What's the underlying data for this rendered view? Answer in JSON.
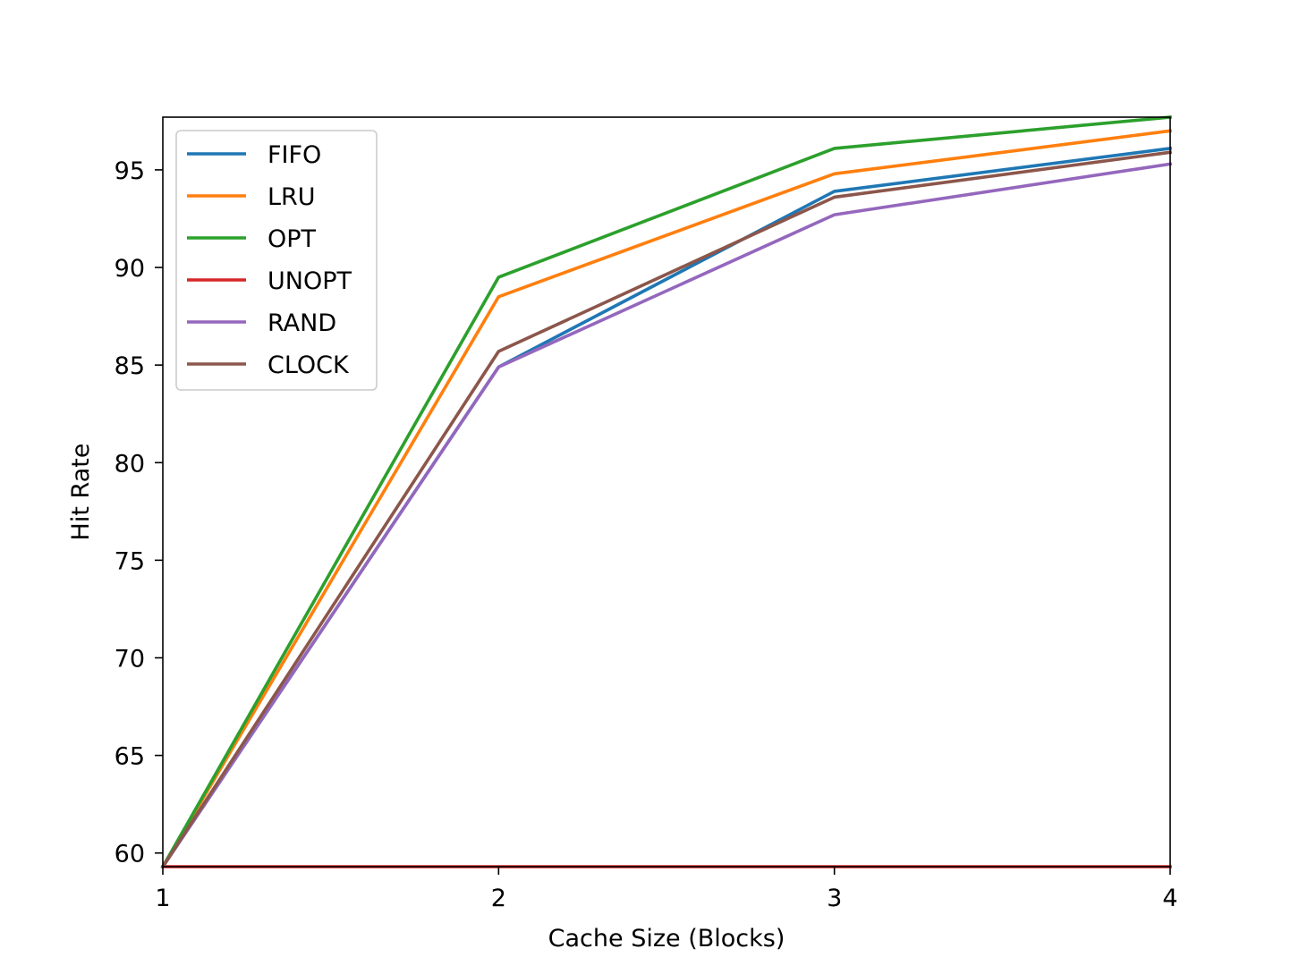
{
  "chart_data": {
    "type": "line",
    "xlabel": "Cache Size (Blocks)",
    "ylabel": "Hit Rate",
    "x": [
      1,
      2,
      3,
      4
    ],
    "xlim": [
      1,
      4
    ],
    "ylim": [
      59.3,
      97.7
    ],
    "xticks": [
      "1",
      "2",
      "3",
      "4"
    ],
    "yticks": [
      "60",
      "65",
      "70",
      "75",
      "80",
      "85",
      "90",
      "95"
    ],
    "grid": false,
    "legend_position": "upper-left",
    "series": [
      {
        "name": "FIFO",
        "color": "#1f77b4",
        "values": [
          59.3,
          84.9,
          93.9,
          96.1
        ]
      },
      {
        "name": "LRU",
        "color": "#ff7f0e",
        "values": [
          59.3,
          88.5,
          94.8,
          97.0
        ]
      },
      {
        "name": "OPT",
        "color": "#2ca02c",
        "values": [
          59.3,
          89.5,
          96.1,
          97.7
        ]
      },
      {
        "name": "UNOPT",
        "color": "#d62728",
        "values": [
          59.3,
          59.3,
          59.3,
          59.3
        ]
      },
      {
        "name": "RAND",
        "color": "#9467bd",
        "values": [
          59.3,
          84.9,
          92.7,
          95.3
        ]
      },
      {
        "name": "CLOCK",
        "color": "#8c564b",
        "values": [
          59.3,
          85.7,
          93.6,
          95.9
        ]
      }
    ]
  }
}
